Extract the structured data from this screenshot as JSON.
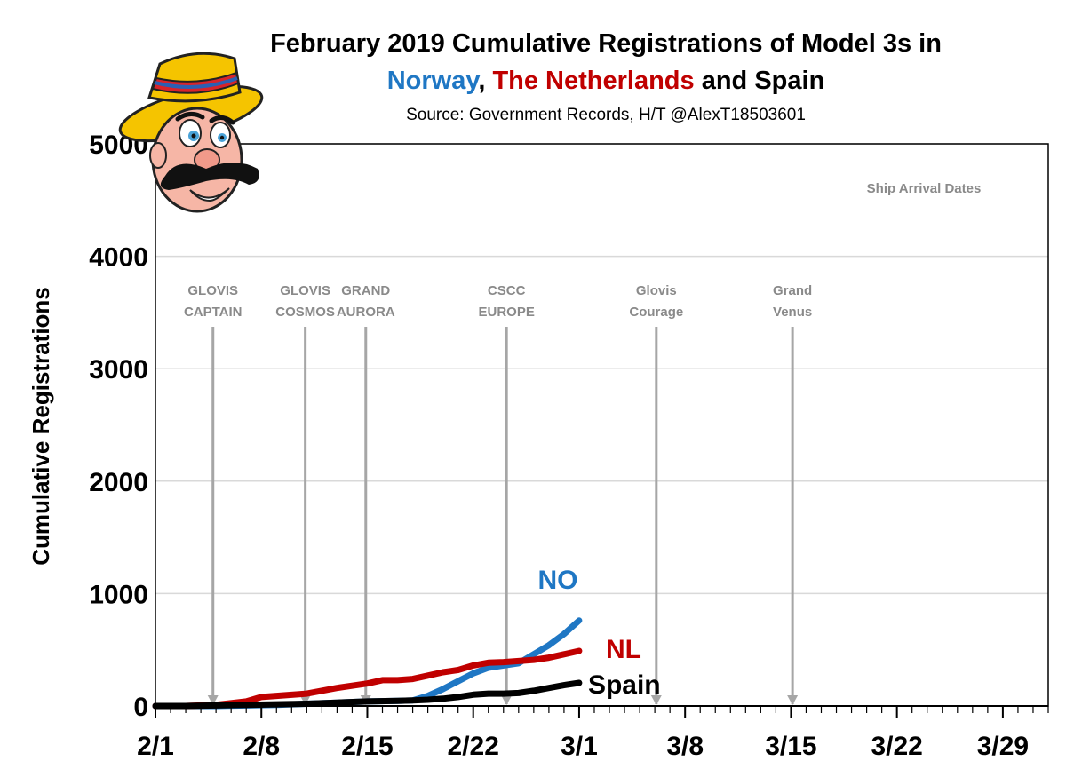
{
  "chart_data": {
    "type": "line",
    "title": {
      "line1": "February 2019 Cumulative Registrations of Model 3s in",
      "line2": [
        {
          "text": "Norway",
          "color": "#1f77c4"
        },
        {
          "text": ", ",
          "color": "#000000"
        },
        {
          "text": "The Netherlands",
          "color": "#c00000"
        },
        {
          "text": " and Spain",
          "color": "#000000"
        }
      ]
    },
    "subtitle": "Source: Government Records, H/T @AlexT18503601",
    "xlabel": "",
    "ylabel": "Cumulative Registrations",
    "x_origin": "2019-02-01",
    "x_range_days": [
      0,
      59
    ],
    "ylim": [
      0,
      5000
    ],
    "y_ticks": [
      {
        "value": 0,
        "label": "0"
      },
      {
        "value": 1000,
        "label": "1000"
      },
      {
        "value": 2000,
        "label": "2000"
      },
      {
        "value": 3000,
        "label": "3000"
      },
      {
        "value": 4000,
        "label": "4000"
      },
      {
        "value": 5000,
        "label": "5000"
      }
    ],
    "x_ticks": [
      {
        "day": 0,
        "label": "2/1"
      },
      {
        "day": 7,
        "label": "2/8"
      },
      {
        "day": 14,
        "label": "2/15"
      },
      {
        "day": 21,
        "label": "2/22"
      },
      {
        "day": 28,
        "label": "3/1"
      },
      {
        "day": 35,
        "label": "3/8"
      },
      {
        "day": 42,
        "label": "3/15"
      },
      {
        "day": 49,
        "label": "3/22"
      },
      {
        "day": 56,
        "label": "3/29"
      }
    ],
    "grid": "horizontal",
    "series": [
      {
        "name": "NO",
        "label": "NO",
        "color": "#1f77c4",
        "x": [
          0,
          2,
          4,
          6,
          8,
          10,
          12,
          14,
          16,
          17,
          18,
          19,
          20,
          21,
          22,
          23,
          24,
          25,
          26,
          27,
          28
        ],
        "values": [
          0,
          0,
          0,
          5,
          10,
          20,
          30,
          40,
          45,
          50,
          90,
          150,
          220,
          290,
          340,
          360,
          380,
          460,
          540,
          640,
          760
        ]
      },
      {
        "name": "NL",
        "label": "NL",
        "color": "#c00000",
        "x": [
          0,
          2,
          4,
          6,
          7,
          8,
          10,
          12,
          13,
          14,
          15,
          16,
          17,
          18,
          19,
          20,
          21,
          22,
          23,
          24,
          25,
          26,
          27,
          28
        ],
        "values": [
          0,
          0,
          10,
          40,
          80,
          90,
          110,
          160,
          180,
          200,
          230,
          230,
          240,
          270,
          300,
          320,
          360,
          385,
          390,
          400,
          410,
          430,
          460,
          490
        ]
      },
      {
        "name": "Spain",
        "label": "Spain",
        "color": "#000000",
        "x": [
          0,
          2,
          4,
          6,
          8,
          10,
          12,
          14,
          16,
          17,
          18,
          19,
          20,
          21,
          22,
          23,
          24,
          25,
          26,
          27,
          28
        ],
        "values": [
          0,
          0,
          5,
          10,
          15,
          20,
          30,
          40,
          45,
          50,
          55,
          65,
          80,
          100,
          110,
          110,
          115,
          135,
          160,
          185,
          205
        ]
      }
    ],
    "annotations": {
      "legend_note": "Ship Arrival Dates",
      "ships": [
        {
          "day": 3.8,
          "line1": "GLOVIS",
          "line2": "CAPTAIN"
        },
        {
          "day": 9.9,
          "line1": "GLOVIS",
          "line2": "COSMOS"
        },
        {
          "day": 13.9,
          "line1": "GRAND",
          "line2": "AURORA"
        },
        {
          "day": 23.2,
          "line1": "CSCC",
          "line2": "EUROPE"
        },
        {
          "day": 33.1,
          "line1": "Glovis",
          "line2": "Courage"
        },
        {
          "day": 42.1,
          "line1": "Grand",
          "line2": "Venus"
        }
      ]
    },
    "colors": {
      "grid": "#d9d9d9",
      "ship_arrow": "#a6a6a6",
      "axis": "#000000"
    }
  }
}
